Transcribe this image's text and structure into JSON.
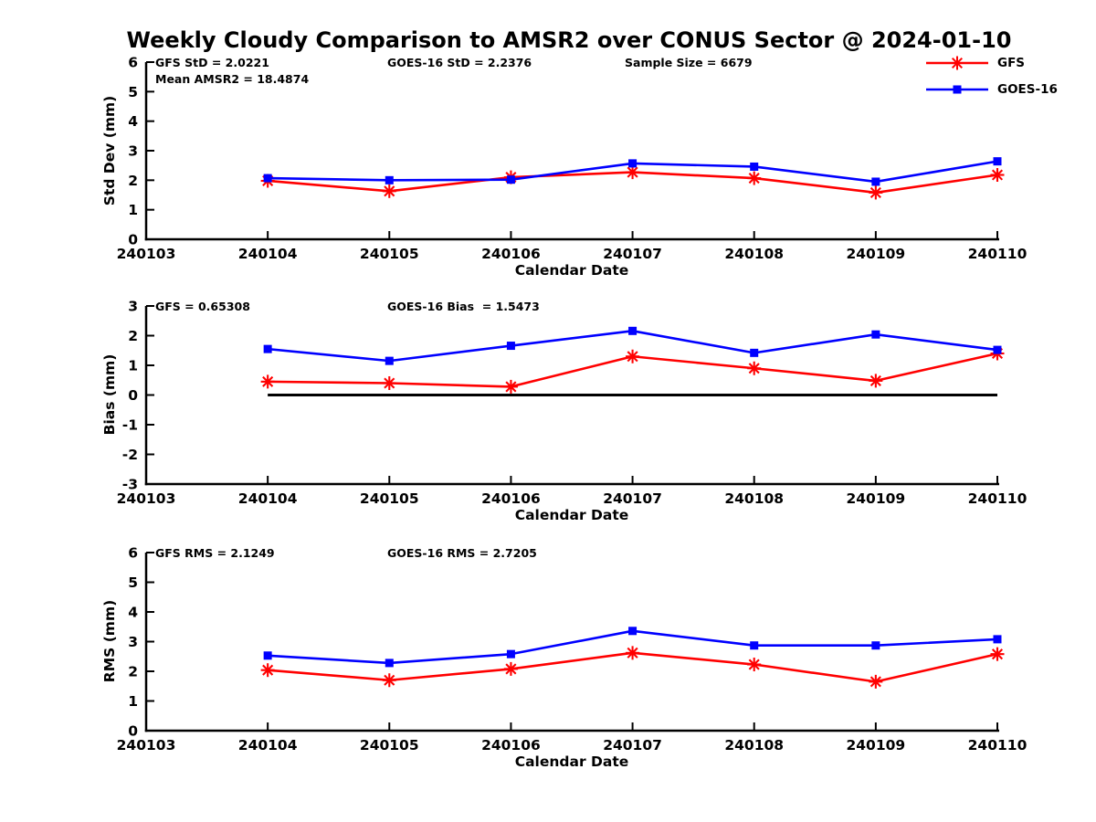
{
  "title": "Weekly Cloudy Comparison to AMSR2 over CONUS Sector @ 2024-01-10",
  "colors": {
    "gfs": "#ff0000",
    "goes16": "#0000ff",
    "axis": "#000000"
  },
  "legend": {
    "items": [
      {
        "label": "GFS",
        "color": "#ff0000",
        "marker": "asterisk"
      },
      {
        "label": "GOES-16",
        "color": "#0000ff",
        "marker": "square"
      }
    ]
  },
  "x_categories": [
    "240103",
    "240104",
    "240105",
    "240106",
    "240107",
    "240108",
    "240109",
    "240110"
  ],
  "chart_data": [
    {
      "type": "line",
      "name": "stddev",
      "title": "",
      "xlabel": "Calendar Date",
      "ylabel": "Std Dev (mm)",
      "ylim": [
        0,
        6
      ],
      "ytick_step": 1,
      "grid": false,
      "x": [
        "240104",
        "240105",
        "240106",
        "240107",
        "240108",
        "240109",
        "240110"
      ],
      "series": [
        {
          "name": "GFS",
          "color": "#ff0000",
          "marker": "asterisk",
          "values": [
            1.98,
            1.63,
            2.1,
            2.27,
            2.07,
            1.58,
            2.18
          ]
        },
        {
          "name": "GOES-16",
          "color": "#0000ff",
          "marker": "square",
          "values": [
            2.07,
            2.0,
            2.02,
            2.57,
            2.46,
            1.95,
            2.64
          ]
        }
      ],
      "annotations": {
        "gfs_std": "GFS StD = 2.0221",
        "mean_amsr2": "Mean AMSR2 = 18.4874",
        "goes_std": "GOES-16 StD = 2.2376",
        "sample_size": "Sample Size = 6679"
      }
    },
    {
      "type": "line",
      "name": "bias",
      "title": "",
      "xlabel": "Calendar Date",
      "ylabel": "Bias (mm)",
      "ylim": [
        -3,
        3
      ],
      "ytick_step": 1,
      "grid": false,
      "zero_line": true,
      "x": [
        "240104",
        "240105",
        "240106",
        "240107",
        "240108",
        "240109",
        "240110"
      ],
      "series": [
        {
          "name": "GFS",
          "color": "#ff0000",
          "marker": "asterisk",
          "values": [
            0.45,
            0.4,
            0.28,
            1.3,
            0.9,
            0.48,
            1.4
          ]
        },
        {
          "name": "GOES-16",
          "color": "#0000ff",
          "marker": "square",
          "values": [
            1.55,
            1.15,
            1.66,
            2.16,
            1.42,
            2.04,
            1.52
          ]
        }
      ],
      "annotations": {
        "gfs_bias": "GFS = 0.65308",
        "goes_bias": "GOES-16 Bias  = 1.5473"
      }
    },
    {
      "type": "line",
      "name": "rms",
      "title": "",
      "xlabel": "Calendar Date",
      "ylabel": "RMS (mm)",
      "ylim": [
        0,
        6
      ],
      "ytick_step": 1,
      "grid": false,
      "x": [
        "240104",
        "240105",
        "240106",
        "240107",
        "240108",
        "240109",
        "240110"
      ],
      "series": [
        {
          "name": "GFS",
          "color": "#ff0000",
          "marker": "asterisk",
          "values": [
            2.04,
            1.7,
            2.08,
            2.62,
            2.23,
            1.65,
            2.58
          ]
        },
        {
          "name": "GOES-16",
          "color": "#0000ff",
          "marker": "square",
          "values": [
            2.53,
            2.28,
            2.58,
            3.36,
            2.87,
            2.87,
            3.08
          ]
        }
      ],
      "annotations": {
        "gfs_rms": "GFS RMS = 2.1249",
        "goes_rms": "GOES-16 RMS = 2.7205"
      }
    }
  ]
}
